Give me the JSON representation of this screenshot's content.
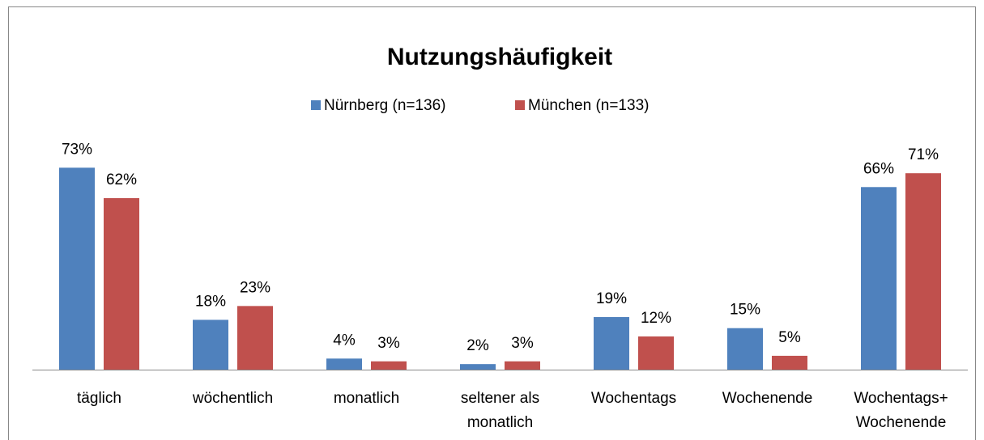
{
  "chart_data": {
    "type": "bar",
    "title": "Nutzungshäufigkeit",
    "categories": [
      "täglich",
      "wöchentlich",
      "monatlich",
      "seltener als monatlich",
      "Wochentags",
      "Wochenende",
      "Wochentags+ Wochenende"
    ],
    "series": [
      {
        "name": "Nürnberg (n=136)",
        "color": "#4f81bd",
        "values": [
          73,
          18,
          4,
          2,
          19,
          15,
          66
        ],
        "value_labels": [
          "73%",
          "18%",
          "4%",
          "2%",
          "19%",
          "15%",
          "66%"
        ]
      },
      {
        "name": "München (n=133)",
        "color": "#c0504d",
        "values": [
          62,
          23,
          3,
          3,
          12,
          5,
          71
        ],
        "value_labels": [
          "62%",
          "23%",
          "3%",
          "3%",
          "12%",
          "5%",
          "71%"
        ]
      }
    ]
  }
}
